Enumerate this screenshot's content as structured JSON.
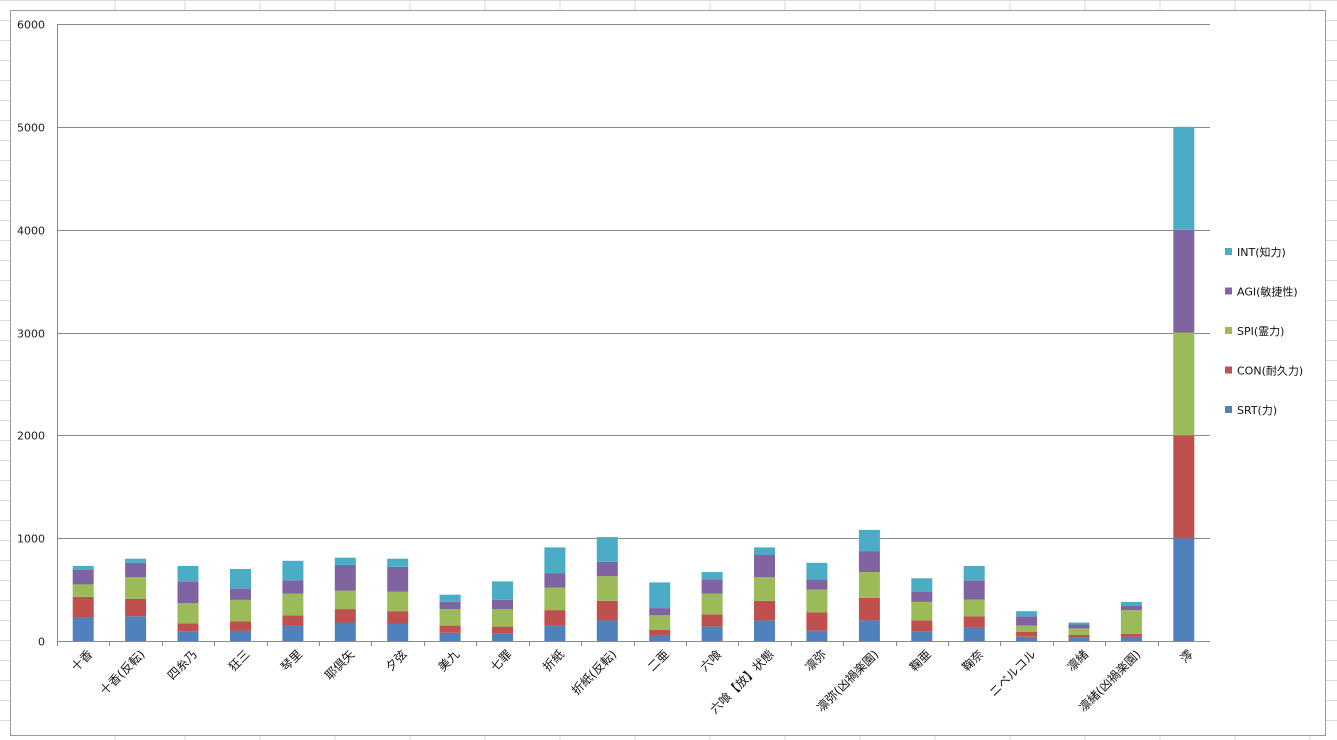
{
  "colors": {
    "series": [
      "#4f81bd",
      "#c0504d",
      "#9bbb59",
      "#8064a2",
      "#4bacc6"
    ],
    "gridline": "#8a8a8a",
    "sheet_grid": "#dadada"
  },
  "chart_data": {
    "type": "bar",
    "stacked": true,
    "title": "",
    "xlabel": "",
    "ylabel": "",
    "ylim": [
      0,
      6000
    ],
    "yticks": [
      0,
      1000,
      2000,
      3000,
      4000,
      5000,
      6000
    ],
    "grid": true,
    "legend_position": "right",
    "categories": [
      "十香",
      "十香(反転)",
      "四糸乃",
      "狂三",
      "琴里",
      "耶倶矢",
      "夕弦",
      "美九",
      "七罪",
      "折紙",
      "折紙(反転)",
      "二亜",
      "六喰",
      "六喰【放】状態",
      "凛弥",
      "凛弥(凶禍楽園)",
      "鞠亜",
      "鞠奈",
      "ニベルコル",
      "凛緒",
      "凛緒(凶禍楽園)",
      "澪"
    ],
    "series": [
      {
        "name": "SRT(力)",
        "values": [
          230,
          240,
          90,
          100,
          150,
          180,
          170,
          80,
          70,
          150,
          200,
          50,
          140,
          200,
          100,
          200,
          90,
          130,
          40,
          30,
          40,
          1000
        ]
      },
      {
        "name": "CON(耐久力)",
        "values": [
          200,
          170,
          80,
          90,
          100,
          130,
          120,
          70,
          70,
          150,
          190,
          60,
          120,
          190,
          180,
          220,
          110,
          110,
          50,
          30,
          30,
          1000
        ]
      },
      {
        "name": "SPI(霊力)",
        "values": [
          120,
          210,
          200,
          210,
          210,
          180,
          190,
          160,
          170,
          220,
          240,
          140,
          200,
          230,
          220,
          250,
          180,
          160,
          60,
          60,
          230,
          1000
        ]
      },
      {
        "name": "AGI(敏捷性)",
        "values": [
          140,
          140,
          210,
          110,
          130,
          250,
          240,
          70,
          90,
          140,
          140,
          70,
          140,
          220,
          100,
          200,
          100,
          190,
          90,
          40,
          40,
          1000
        ]
      },
      {
        "name": "INT(知力)",
        "values": [
          40,
          40,
          150,
          190,
          190,
          70,
          80,
          70,
          180,
          250,
          240,
          250,
          70,
          70,
          160,
          210,
          130,
          140,
          50,
          20,
          40,
          1000
        ]
      }
    ]
  }
}
